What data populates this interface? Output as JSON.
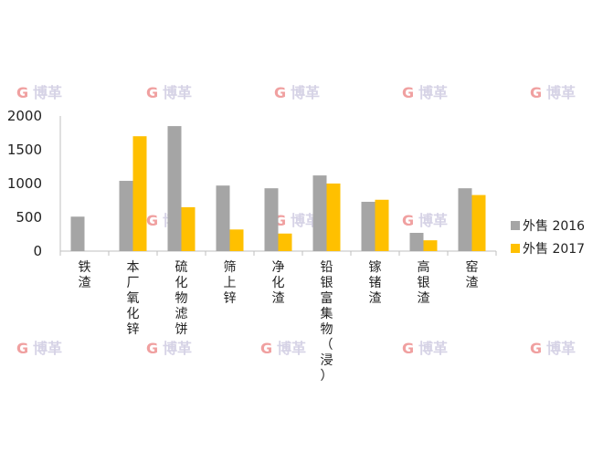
{
  "chart_data": {
    "type": "bar",
    "categories": [
      "铁渣",
      "本厂氧化锌",
      "硫化物滤饼",
      "筛上锌",
      "净化渣",
      "铅银富集物（浸）",
      "镓锗渣",
      "高银渣",
      "窑渣"
    ],
    "series": [
      {
        "name": "外售 2016",
        "color": "#a5a5a5",
        "values": [
          510,
          1040,
          1850,
          970,
          930,
          1120,
          730,
          270,
          930
        ]
      },
      {
        "name": "外售 2017",
        "color": "#ffc000",
        "values": [
          0,
          1700,
          650,
          320,
          260,
          1000,
          760,
          160,
          830
        ]
      }
    ],
    "ylim": [
      0,
      2000
    ],
    "yticks": [
      "0",
      "500",
      "1000",
      "1500",
      "2000"
    ],
    "grid": false,
    "legend": "right",
    "title": "",
    "xlabel": "",
    "ylabel": ""
  },
  "watermark": {
    "text": "博革",
    "logo_color": "#f0a0a0"
  }
}
